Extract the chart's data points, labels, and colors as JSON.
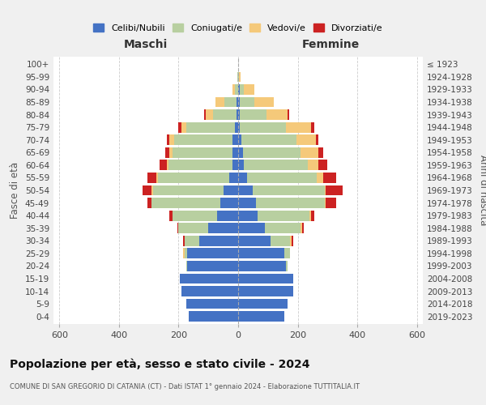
{
  "age_groups": [
    "0-4",
    "5-9",
    "10-14",
    "15-19",
    "20-24",
    "25-29",
    "30-34",
    "35-39",
    "40-44",
    "45-49",
    "50-54",
    "55-59",
    "60-64",
    "65-69",
    "70-74",
    "75-79",
    "80-84",
    "85-89",
    "90-94",
    "95-99",
    "100+"
  ],
  "birth_years": [
    "2019-2023",
    "2014-2018",
    "2009-2013",
    "2004-2008",
    "1999-2003",
    "1994-1998",
    "1989-1993",
    "1984-1988",
    "1979-1983",
    "1974-1978",
    "1969-1973",
    "1964-1968",
    "1959-1963",
    "1954-1958",
    "1949-1953",
    "1944-1948",
    "1939-1943",
    "1934-1938",
    "1929-1933",
    "1924-1928",
    "≤ 1923"
  ],
  "maschi": {
    "celibi": [
      165,
      175,
      190,
      195,
      170,
      170,
      130,
      100,
      70,
      60,
      50,
      30,
      20,
      20,
      20,
      10,
      5,
      5,
      0,
      0,
      0
    ],
    "coniugati": [
      0,
      0,
      0,
      0,
      5,
      10,
      50,
      100,
      150,
      230,
      235,
      240,
      215,
      200,
      195,
      165,
      80,
      40,
      10,
      2,
      0
    ],
    "vedovi": [
      0,
      0,
      0,
      0,
      0,
      5,
      0,
      0,
      0,
      0,
      5,
      5,
      5,
      10,
      15,
      15,
      25,
      30,
      10,
      2,
      0
    ],
    "divorziati": [
      0,
      0,
      0,
      0,
      0,
      0,
      5,
      5,
      10,
      15,
      30,
      30,
      25,
      15,
      10,
      10,
      5,
      0,
      0,
      0,
      0
    ]
  },
  "femmine": {
    "nubili": [
      155,
      165,
      185,
      185,
      160,
      155,
      110,
      90,
      65,
      60,
      50,
      30,
      20,
      15,
      10,
      5,
      5,
      5,
      5,
      0,
      0
    ],
    "coniugate": [
      0,
      0,
      0,
      0,
      5,
      20,
      65,
      120,
      175,
      230,
      240,
      235,
      215,
      195,
      185,
      155,
      90,
      50,
      15,
      2,
      0
    ],
    "vedove": [
      0,
      0,
      0,
      0,
      0,
      0,
      5,
      5,
      5,
      5,
      5,
      20,
      35,
      60,
      65,
      85,
      70,
      65,
      35,
      5,
      0
    ],
    "divorziate": [
      0,
      0,
      0,
      0,
      0,
      0,
      5,
      5,
      10,
      35,
      55,
      45,
      30,
      15,
      10,
      10,
      5,
      0,
      0,
      0,
      0
    ]
  },
  "colors": {
    "celibi": "#4472c4",
    "coniugati": "#b8cfa0",
    "vedovi": "#f5c97a",
    "divorziati": "#cc2222"
  },
  "title": "Popolazione per età, sesso e stato civile - 2024",
  "subtitle": "COMUNE DI SAN GREGORIO DI CATANIA (CT) - Dati ISTAT 1° gennaio 2024 - Elaborazione TUTTITALIA.IT",
  "xlabel_left": "Maschi",
  "xlabel_right": "Femmine",
  "ylabel_left": "Fasce di età",
  "ylabel_right": "Anni di nascita",
  "xlim": 620,
  "legend_labels": [
    "Celibi/Nubili",
    "Coniugati/e",
    "Vedovi/e",
    "Divorziati/e"
  ],
  "bg_color": "#f0f0f0",
  "plot_bg_color": "#ffffff"
}
